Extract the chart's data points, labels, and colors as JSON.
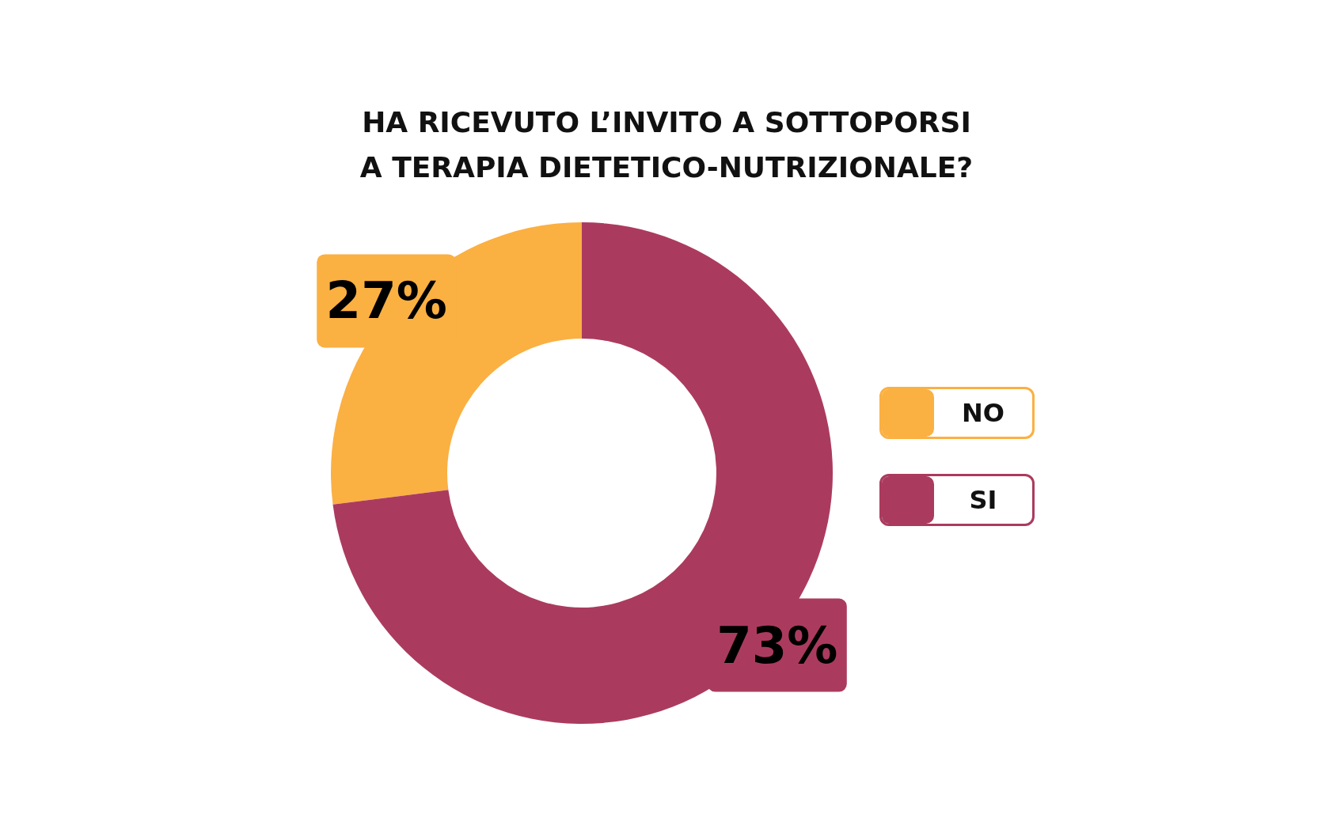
{
  "chart_data": {
    "type": "donut",
    "title": "HA RICEVUTO L’INVITO A SOTTOPORSI\nA TERAPIA DIETETICO-NUTRIZIONALE?",
    "categories": [
      "NO",
      "SI"
    ],
    "values": [
      27,
      73
    ],
    "colors": [
      "#fbb042",
      "#ab3b5e"
    ],
    "value_labels": [
      "27%",
      "73%"
    ],
    "legend": "right"
  }
}
